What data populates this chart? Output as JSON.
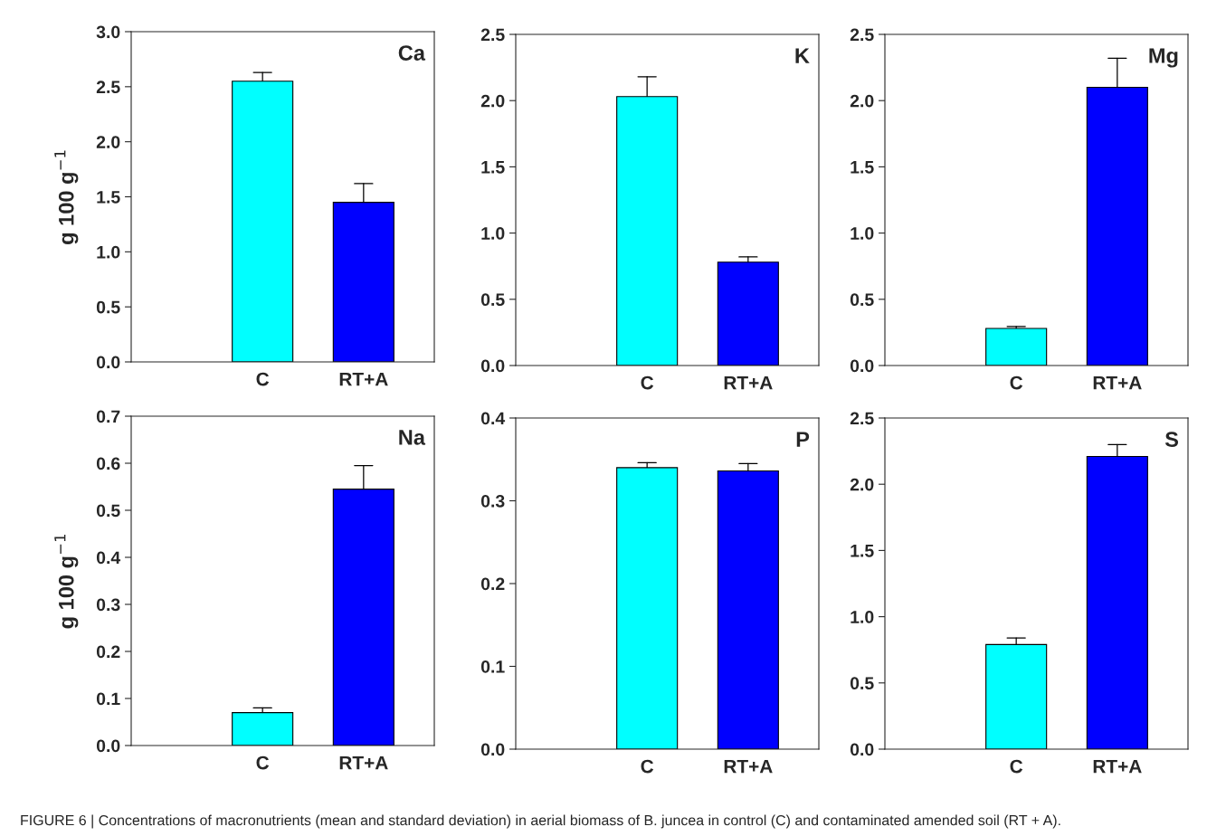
{
  "chart_data": [
    {
      "type": "bar",
      "categories": [
        "C",
        "RT+A"
      ],
      "values": [
        2.55,
        1.45
      ],
      "colors": [
        "#00ffff",
        "#0000ff"
      ],
      "errors": [
        0.08,
        0.17
      ],
      "ylim": [
        0,
        3.0
      ],
      "yticks": [
        {
          "value": 0,
          "label": "0.0"
        },
        0.5,
        {
          "value": 1,
          "label": "1.0"
        },
        1.5,
        {
          "value": 2,
          "label": "2.0"
        },
        2.5,
        {
          "value": 3,
          "label": "3.0"
        }
      ],
      "ylabel": "g 100 g$^{−1}$",
      "annotations": [
        "Ca",
        "FIGURE 6 | Concentrations of macronutrients (mean and standard deviation) in aerial biomass of B. juncea in control (C) and contaminated amended soil (RT + A)."
      ],
      "grid": false
    },
    {
      "type": "bar",
      "categories": [
        "C",
        "RT+A"
      ],
      "values": [
        2.03,
        0.78
      ],
      "colors": [
        "#00ffff",
        "#0000ff"
      ],
      "errors": [
        0.15,
        0.04
      ],
      "ylim": [
        0,
        2.5
      ],
      "yticks": [
        {
          "value": 0,
          "label": "0.0"
        },
        0.5,
        {
          "value": 1,
          "label": "1.0"
        },
        1.5,
        {
          "value": 2,
          "label": "2.0"
        },
        2.5
      ],
      "annotations": [
        "K"
      ],
      "grid": false
    },
    {
      "type": "bar",
      "categories": [
        "C",
        "RT+A"
      ],
      "values": [
        0.28,
        2.1
      ],
      "colors": [
        "#00ffff",
        "#0000ff"
      ],
      "errors": [
        0.015,
        0.22
      ],
      "ylim": [
        0,
        2.5
      ],
      "yticks": [
        {
          "value": 0,
          "label": "0.0"
        },
        0.5,
        {
          "value": 1,
          "label": "1.0"
        },
        1.5,
        {
          "value": 2,
          "label": "2.0"
        },
        2.5
      ],
      "annotations": [
        "Mg"
      ],
      "grid": false
    },
    {
      "type": "bar",
      "categories": [
        "C",
        "RT+A"
      ],
      "values": [
        0.07,
        0.545
      ],
      "colors": [
        "#00ffff",
        "#0000ff"
      ],
      "errors": [
        0.01,
        0.05
      ],
      "ylim": [
        0,
        0.7
      ],
      "yticks": [
        {
          "value": 0,
          "label": "0.0"
        },
        0.1,
        0.2,
        0.3,
        0.4,
        0.5,
        0.6,
        0.7
      ],
      "ylabel": "g 100 g$^{−1}$",
      "annotations": [
        "Na"
      ],
      "grid": false
    },
    {
      "type": "bar",
      "categories": [
        "C",
        "RT+A"
      ],
      "values": [
        0.34,
        0.336
      ],
      "colors": [
        "#00ffff",
        "#0000ff"
      ],
      "errors": [
        0.006,
        0.009
      ],
      "ylim": [
        0,
        0.4
      ],
      "yticks": [
        {
          "value": 0,
          "label": "0.0"
        },
        0.1,
        0.2,
        0.3,
        0.4
      ],
      "annotations": [
        "P"
      ],
      "grid": false
    },
    {
      "type": "bar",
      "categories": [
        "C",
        "RT+A"
      ],
      "values": [
        0.79,
        2.21
      ],
      "colors": [
        "#00ffff",
        "#0000ff"
      ],
      "errors": [
        0.05,
        0.09
      ],
      "ylim": [
        0,
        2.5
      ],
      "yticks": [
        {
          "value": 0,
          "label": "0.0"
        },
        0.5,
        {
          "value": 1,
          "label": "1.0"
        },
        1.5,
        {
          "value": 2,
          "label": "2.0"
        },
        2.5
      ],
      "annotations": [
        "S"
      ],
      "grid": false
    }
  ]
}
